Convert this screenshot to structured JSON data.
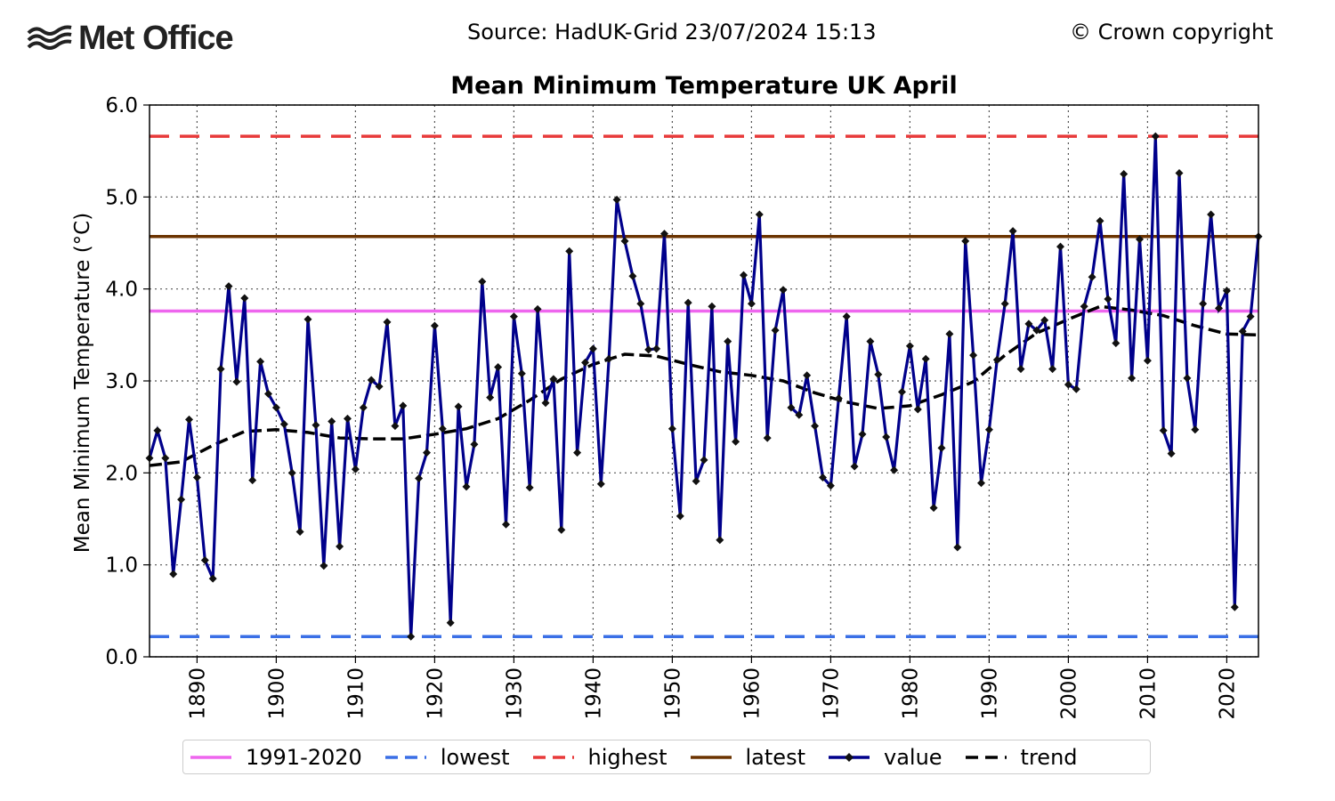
{
  "header": {
    "logo_text": "Met Office",
    "source": "Source: HadUK-Grid 23/07/2024 15:13",
    "copyright": "© Crown copyright"
  },
  "chart_data": {
    "type": "line",
    "title": "Mean Minimum Temperature UK April",
    "xlabel": "",
    "ylabel": "Mean Minimum Temperature (°C)",
    "xlim": [
      1884,
      2024
    ],
    "ylim": [
      0.0,
      6.0
    ],
    "yticks": [
      0.0,
      1.0,
      2.0,
      3.0,
      4.0,
      5.0,
      6.0
    ],
    "ytick_labels": [
      "0.0",
      "1.0",
      "2.0",
      "3.0",
      "4.0",
      "5.0",
      "6.0"
    ],
    "xticks": [
      1890,
      1900,
      1910,
      1920,
      1930,
      1940,
      1950,
      1960,
      1970,
      1980,
      1990,
      2000,
      2010,
      2020
    ],
    "xtick_labels": [
      "1890",
      "1900",
      "1910",
      "1920",
      "1930",
      "1940",
      "1950",
      "1960",
      "1970",
      "1980",
      "1990",
      "2000",
      "2010",
      "2020"
    ],
    "grid": true,
    "legend_position": "bottom",
    "x": [
      1884,
      1885,
      1886,
      1887,
      1888,
      1889,
      1890,
      1891,
      1892,
      1893,
      1894,
      1895,
      1896,
      1897,
      1898,
      1899,
      1900,
      1901,
      1902,
      1903,
      1904,
      1905,
      1906,
      1907,
      1908,
      1909,
      1910,
      1911,
      1912,
      1913,
      1914,
      1915,
      1916,
      1917,
      1918,
      1919,
      1920,
      1921,
      1922,
      1923,
      1924,
      1925,
      1926,
      1927,
      1928,
      1929,
      1930,
      1931,
      1932,
      1933,
      1934,
      1935,
      1936,
      1937,
      1938,
      1939,
      1940,
      1941,
      1942,
      1943,
      1944,
      1945,
      1946,
      1947,
      1948,
      1949,
      1950,
      1951,
      1952,
      1953,
      1954,
      1955,
      1956,
      1957,
      1958,
      1959,
      1960,
      1961,
      1962,
      1963,
      1964,
      1965,
      1966,
      1967,
      1968,
      1969,
      1970,
      1971,
      1972,
      1973,
      1974,
      1975,
      1976,
      1977,
      1978,
      1979,
      1980,
      1981,
      1982,
      1983,
      1984,
      1985,
      1986,
      1987,
      1988,
      1989,
      1990,
      1991,
      1992,
      1993,
      1994,
      1995,
      1996,
      1997,
      1998,
      1999,
      2000,
      2001,
      2002,
      2003,
      2004,
      2005,
      2006,
      2007,
      2008,
      2009,
      2010,
      2011,
      2012,
      2013,
      2014,
      2015,
      2016,
      2017,
      2018,
      2019,
      2020,
      2021,
      2022,
      2023,
      2024
    ],
    "series": [
      {
        "name": "value",
        "color": "#00008b",
        "values": [
          2.16,
          2.46,
          2.16,
          0.9,
          1.71,
          2.58,
          1.95,
          1.05,
          0.85,
          3.13,
          4.03,
          2.99,
          3.9,
          1.92,
          3.21,
          2.86,
          2.71,
          2.53,
          2.0,
          1.36,
          3.67,
          2.52,
          0.99,
          2.56,
          1.2,
          2.59,
          2.04,
          2.71,
          3.01,
          2.94,
          3.64,
          2.51,
          2.73,
          0.22,
          1.94,
          2.22,
          3.6,
          2.48,
          0.37,
          2.72,
          1.85,
          2.31,
          4.08,
          2.82,
          3.15,
          1.44,
          3.7,
          3.08,
          1.84,
          3.78,
          2.76,
          3.02,
          1.38,
          4.41,
          2.22,
          3.2,
          3.35,
          1.88,
          3.24,
          4.97,
          4.52,
          4.14,
          3.84,
          3.34,
          3.35,
          4.6,
          2.48,
          1.53,
          3.85,
          1.91,
          2.14,
          3.81,
          1.27,
          3.43,
          2.34,
          4.15,
          3.84,
          4.81,
          2.38,
          3.55,
          3.99,
          2.71,
          2.63,
          3.06,
          2.51,
          1.95,
          1.86,
          2.81,
          3.7,
          2.07,
          2.42,
          3.43,
          3.07,
          2.39,
          2.03,
          2.88,
          3.38,
          2.69,
          3.24,
          1.62,
          2.27,
          3.51,
          1.19,
          4.52,
          3.28,
          1.89,
          2.47,
          3.23,
          3.84,
          4.63,
          3.13,
          3.62,
          3.55,
          3.66,
          3.13,
          4.46,
          2.96,
          2.91,
          3.81,
          4.13,
          4.74,
          3.89,
          3.41,
          5.25,
          3.03,
          4.54,
          3.22,
          5.66,
          2.46,
          2.21,
          5.26,
          3.03,
          2.47,
          3.84,
          4.81,
          3.79,
          3.98,
          0.54,
          3.54,
          3.7,
          4.57
        ]
      },
      {
        "name": "trend",
        "color": "#000000",
        "x": [
          1884,
          1888,
          1892,
          1896,
          1900,
          1904,
          1908,
          1912,
          1916,
          1920,
          1924,
          1928,
          1932,
          1936,
          1940,
          1944,
          1948,
          1952,
          1956,
          1960,
          1964,
          1968,
          1972,
          1976,
          1980,
          1984,
          1988,
          1992,
          1996,
          2000,
          2004,
          2008,
          2012,
          2016,
          2020,
          2024
        ],
        "values": [
          2.08,
          2.12,
          2.3,
          2.45,
          2.47,
          2.44,
          2.38,
          2.37,
          2.37,
          2.42,
          2.48,
          2.59,
          2.79,
          3.02,
          3.18,
          3.29,
          3.27,
          3.18,
          3.1,
          3.06,
          3.0,
          2.87,
          2.77,
          2.7,
          2.73,
          2.85,
          2.99,
          3.28,
          3.52,
          3.67,
          3.81,
          3.77,
          3.71,
          3.6,
          3.51,
          3.5
        ]
      }
    ],
    "reference_lines": [
      {
        "name": "1991-2020",
        "value": 3.76,
        "color": "#ee66ee",
        "style": "solid"
      },
      {
        "name": "lowest",
        "value": 0.22,
        "color": "#3a6fe6",
        "style": "dashed"
      },
      {
        "name": "highest",
        "value": 5.66,
        "color": "#e83a3a",
        "style": "dashed"
      },
      {
        "name": "latest",
        "value": 4.57,
        "color": "#6b3300",
        "style": "solid"
      }
    ],
    "legend": [
      {
        "label": "1991-2020",
        "color": "#ee66ee",
        "style": "solid"
      },
      {
        "label": "lowest",
        "color": "#3a6fe6",
        "style": "dashed"
      },
      {
        "label": "highest",
        "color": "#e83a3a",
        "style": "dashed"
      },
      {
        "label": "latest",
        "color": "#6b3300",
        "style": "solid"
      },
      {
        "label": "value",
        "color": "#00008b",
        "style": "marker"
      },
      {
        "label": "trend",
        "color": "#000000",
        "style": "dashed"
      }
    ]
  }
}
